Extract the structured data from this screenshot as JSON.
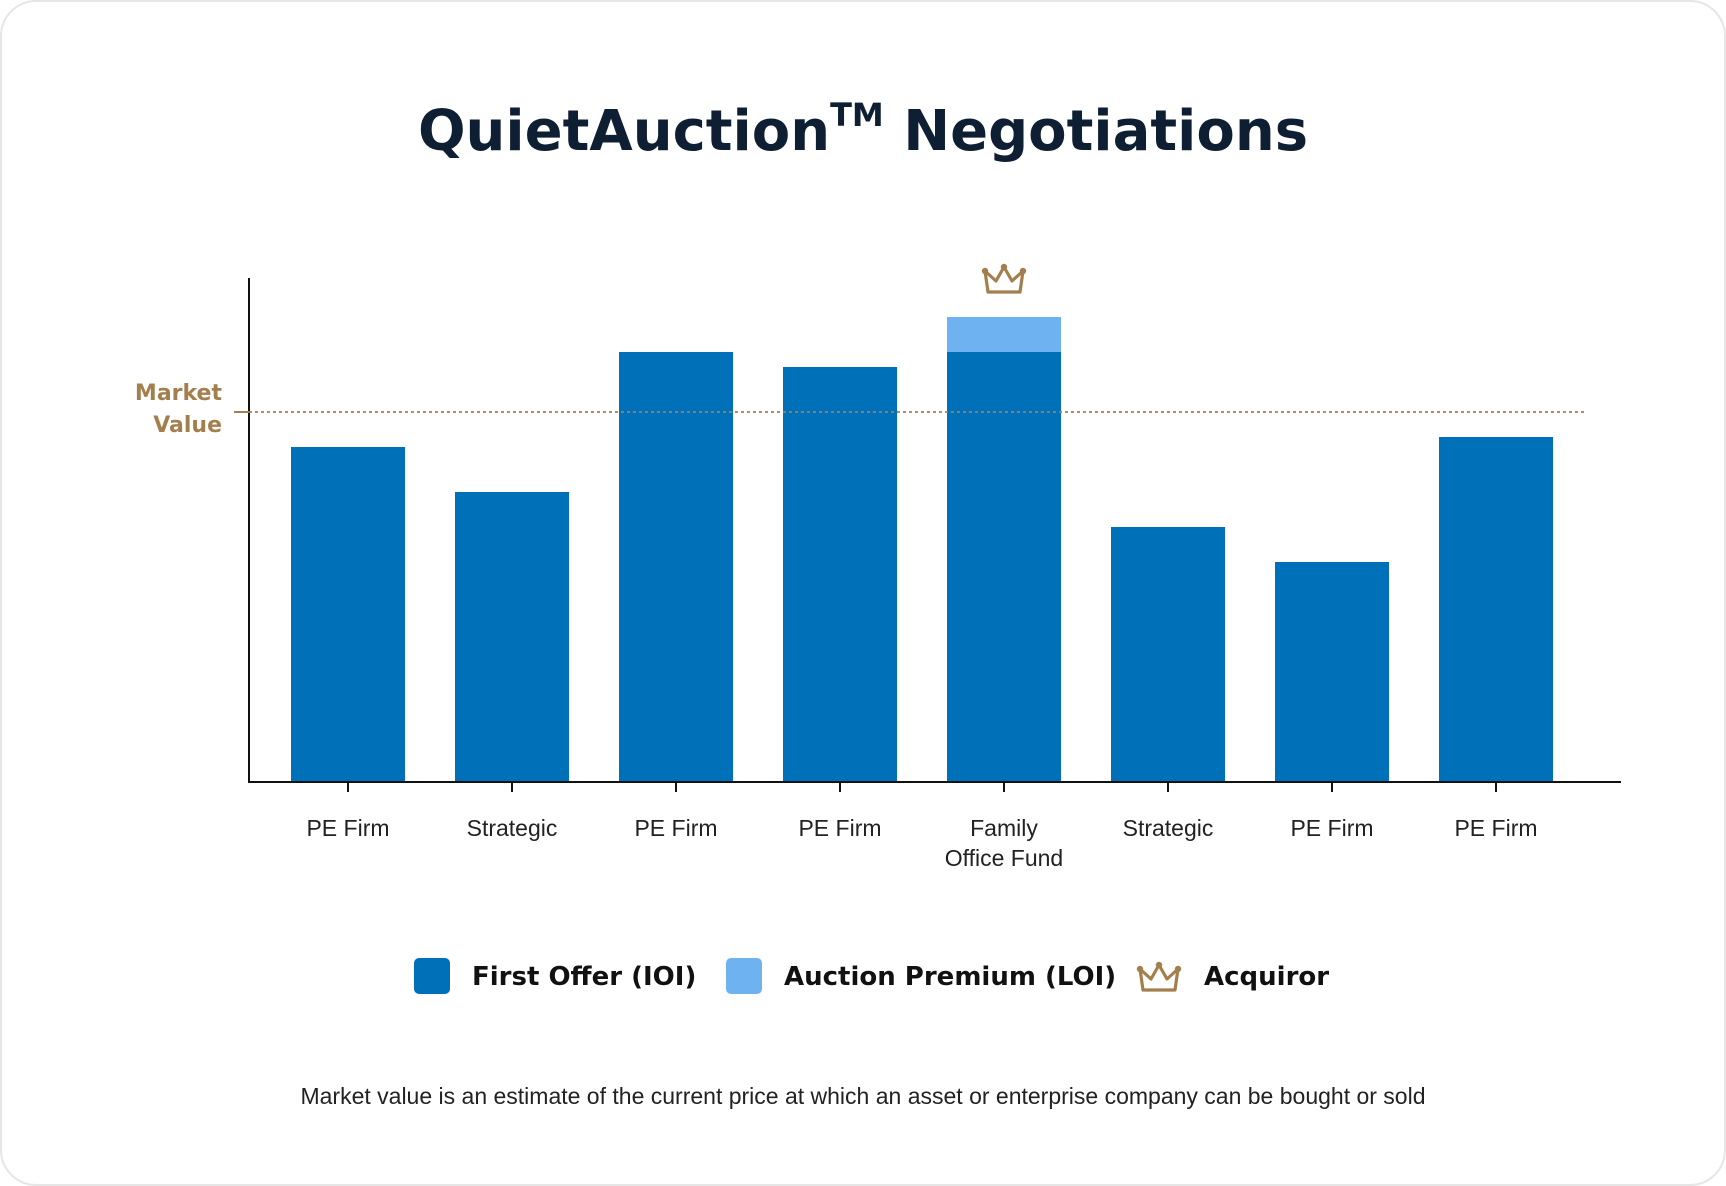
{
  "chart_data": {
    "type": "bar",
    "stacked": true,
    "title": "QuietAuction",
    "title_superscript": "TM",
    "title_suffix": " Negotiations",
    "categories": [
      [
        "PE Firm"
      ],
      [
        "Strategic"
      ],
      [
        "PE Firm"
      ],
      [
        "PE Firm"
      ],
      [
        "Family",
        "Office Fund"
      ],
      [
        "Strategic"
      ],
      [
        "PE Firm"
      ],
      [
        "PE Firm"
      ]
    ],
    "series": [
      {
        "name": "First Offer (IOI)",
        "color": "#0070b8",
        "values": [
          67,
          58,
          86,
          83,
          86,
          51,
          44,
          69
        ]
      },
      {
        "name": "Auction Premium (LOI)",
        "color": "#6fb2f2",
        "values": [
          0,
          0,
          0,
          0,
          7,
          0,
          0,
          0
        ]
      }
    ],
    "ylim": [
      0,
      100
    ],
    "reference_line": {
      "label_lines": [
        "Market",
        "Value"
      ],
      "value": 74,
      "color": "#a47f4e"
    },
    "acquiror_index": 4,
    "acquiror_icon": "crown-icon",
    "legend": [
      {
        "label": "First Offer (IOI)",
        "color": "#0070b8",
        "icon": "square-swatch"
      },
      {
        "label": "Auction Premium (LOI)",
        "color": "#6fb2f2",
        "icon": "square-swatch"
      },
      {
        "label": "Acquiror",
        "color": "#a47f4e",
        "icon": "crown-icon"
      }
    ],
    "legend_position": "bottom",
    "grid": false,
    "footnote": "Market value is an estimate of the current price at which an asset or enterprise company can be bought or sold"
  }
}
